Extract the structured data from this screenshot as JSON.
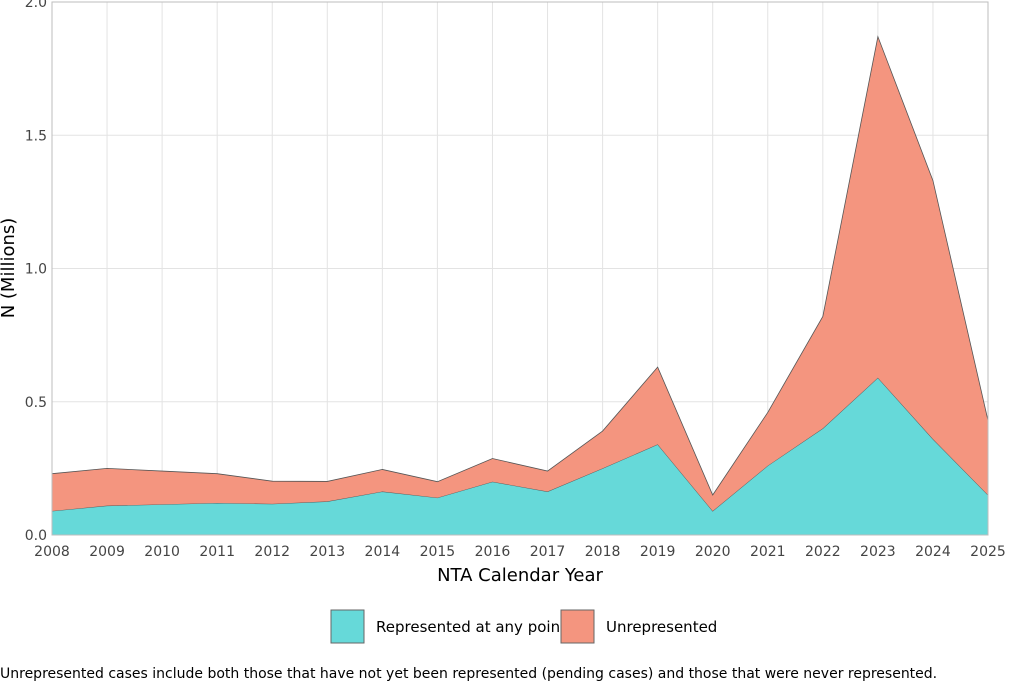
{
  "chart_data": {
    "type": "area",
    "stacked": true,
    "xlabel": "NTA Calendar Year",
    "ylabel": "N (Millions)",
    "ylim": [
      0,
      2.0
    ],
    "yticks": [
      "0.0",
      "0.5",
      "1.0",
      "1.5",
      "2.0"
    ],
    "x": [
      "2008",
      "2009",
      "2010",
      "2011",
      "2012",
      "2013",
      "2014",
      "2015",
      "2016",
      "2017",
      "2018",
      "2019",
      "2020",
      "2021",
      "2022",
      "2023",
      "2024",
      "2025"
    ],
    "series": [
      {
        "name": "Represented at any point",
        "color": "#66d9d9",
        "values": [
          0.09,
          0.11,
          0.115,
          0.12,
          0.117,
          0.126,
          0.163,
          0.14,
          0.2,
          0.163,
          0.25,
          0.34,
          0.09,
          0.26,
          0.4,
          0.59,
          0.36,
          0.15
        ]
      },
      {
        "name": "Unrepresented",
        "color": "#f4957f",
        "values": [
          0.14,
          0.14,
          0.125,
          0.11,
          0.085,
          0.075,
          0.083,
          0.06,
          0.087,
          0.077,
          0.14,
          0.29,
          0.06,
          0.2,
          0.42,
          1.28,
          0.97,
          0.28
        ]
      }
    ],
    "grid": true,
    "legend_position": "bottom"
  },
  "caption": "Unrepresented cases include both those that have not yet been represented (pending cases) and those that were never represented."
}
